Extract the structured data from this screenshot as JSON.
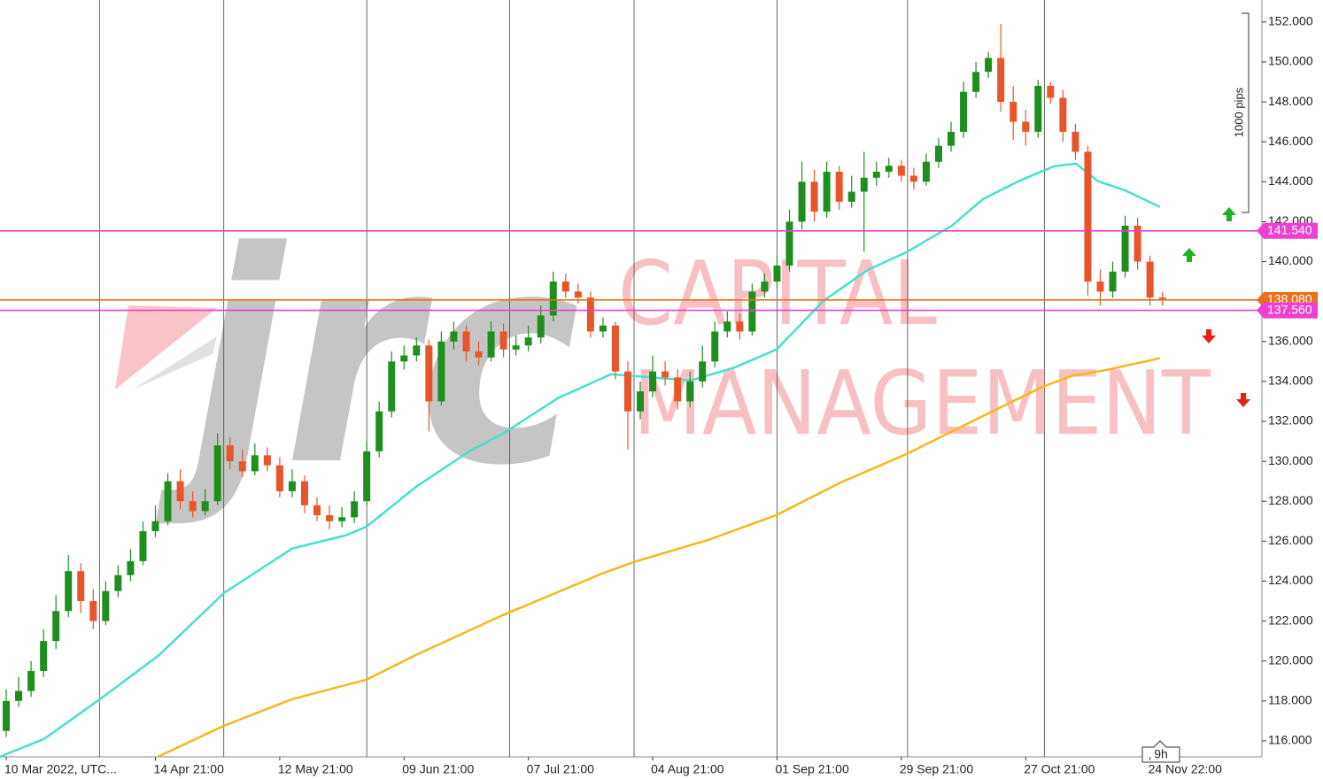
{
  "chart_data": {
    "type": "candlestick",
    "watermark": {
      "logo": "jrc",
      "line1": "CAPITAL",
      "line2": "MANAGEMENT"
    },
    "scale_label": "1000 pips",
    "timeframe_label": "9h",
    "up_color": "#1e8f1e",
    "down_color": "#e8552a",
    "xlim": [
      -0.5,
      101
    ],
    "ylim": [
      115.2,
      153.1
    ],
    "xgrid": [
      7.5,
      17.5,
      29,
      40.5,
      50.5,
      62,
      72.5,
      83.5
    ],
    "xticks": [
      {
        "value": 0,
        "label": "10 Mar 2022, UTC..."
      },
      {
        "value": 12,
        "label": "14 Apr 21:00"
      },
      {
        "value": 22,
        "label": "12 May 21:00"
      },
      {
        "value": 32,
        "label": "09 Jun 21:00"
      },
      {
        "value": 42,
        "label": "07 Jul 21:00"
      },
      {
        "value": 52,
        "label": "04 Aug 21:00"
      },
      {
        "value": 62,
        "label": "01 Sep 21:00"
      },
      {
        "value": 72,
        "label": "29 Sep 21:00"
      },
      {
        "value": 82,
        "label": "27 Oct 21:00"
      },
      {
        "value": 92,
        "label": "24 Nov 22:00"
      }
    ],
    "yticks": [
      {
        "value": 116,
        "label": "116.000"
      },
      {
        "value": 118,
        "label": "118.000"
      },
      {
        "value": 120,
        "label": "120.000"
      },
      {
        "value": 122,
        "label": "122.000"
      },
      {
        "value": 124,
        "label": "124.000"
      },
      {
        "value": 126,
        "label": "126.000"
      },
      {
        "value": 128,
        "label": "128.000"
      },
      {
        "value": 130,
        "label": "130.000"
      },
      {
        "value": 132,
        "label": "132.000"
      },
      {
        "value": 134,
        "label": "134.000"
      },
      {
        "value": 136,
        "label": "136.000"
      },
      {
        "value": 138,
        "label": "138.000"
      },
      {
        "value": 140,
        "label": "140.000"
      },
      {
        "value": 142,
        "label": "142.000"
      },
      {
        "value": 144,
        "label": "144.000"
      },
      {
        "value": 146,
        "label": "146.000"
      },
      {
        "value": 148,
        "label": "148.000"
      },
      {
        "value": 150,
        "label": "150.000"
      },
      {
        "value": 152,
        "label": "152.000"
      }
    ],
    "open": [
      116.5,
      118,
      118.5,
      119.5,
      121,
      122.5,
      124.5,
      123,
      122,
      123.5,
      124.3,
      125,
      126.5,
      127,
      129,
      128,
      127.5,
      128,
      130.8,
      130,
      129.5,
      130.3,
      129.8,
      128.5,
      129,
      127.8,
      127.3,
      127,
      127.2,
      128,
      130.5,
      132.5,
      135,
      135.3,
      135.8,
      133,
      136,
      136.5,
      135.5,
      135.2,
      136.5,
      135.6,
      135.8,
      136.2,
      137.3,
      139,
      138.5,
      138.2,
      136.5,
      136.8,
      134.5,
      132.5,
      133.5,
      134.5,
      134.2,
      133,
      134,
      135,
      136.5,
      137,
      136.5,
      138.5,
      139,
      139.8,
      142,
      144,
      142.5,
      144.5,
      143,
      143.5,
      144.2,
      144.5,
      144.8,
      144.3,
      144,
      145,
      145.8,
      146.5,
      148.5,
      149.5,
      150.2,
      148,
      147,
      146.5,
      148.8,
      148.2,
      146.5,
      145.5,
      139,
      138.5,
      139.5,
      141.8,
      140,
      138.2
    ],
    "high": [
      118.6,
      119.2,
      120,
      121.6,
      123.3,
      125.3,
      124.9,
      123.6,
      124,
      124.8,
      125.6,
      127,
      127.8,
      129.4,
      129.6,
      128.5,
      128.6,
      131.4,
      131.2,
      130.6,
      130.9,
      130.7,
      130.2,
      129.6,
      129.3,
      128.2,
      127.8,
      127.7,
      128.5,
      131,
      133,
      135.5,
      135.8,
      136.2,
      136.1,
      136.5,
      137,
      136.8,
      136,
      137,
      136.9,
      136.3,
      136.8,
      137.8,
      139.5,
      139.4,
      138.9,
      138.5,
      137.2,
      137,
      135,
      134,
      135.3,
      135,
      134.6,
      134.5,
      135.8,
      137,
      137.5,
      137.4,
      138.9,
      139.4,
      140.3,
      142.6,
      145,
      144.6,
      145,
      144.8,
      144.3,
      145.5,
      145,
      145.2,
      145.1,
      144.7,
      145.4,
      146.2,
      147,
      149,
      150,
      150.5,
      151.9,
      148.8,
      147.6,
      149.1,
      149,
      148.6,
      146.9,
      145.8,
      139.6,
      140,
      142.3,
      142.2,
      140.3,
      138.5
    ],
    "low": [
      116.2,
      117.7,
      118.2,
      119.2,
      120.6,
      122.2,
      122.4,
      121.6,
      121.8,
      123.2,
      124,
      124.8,
      126.2,
      126.8,
      127.6,
      127.2,
      127.3,
      127.8,
      129.6,
      129.2,
      129.3,
      129.5,
      128.2,
      128.2,
      127.4,
      127,
      126.6,
      126.7,
      126.9,
      127.8,
      130.2,
      132.2,
      134.6,
      135,
      131.5,
      132.8,
      135.6,
      135,
      134.8,
      135,
      135.2,
      135.3,
      135.5,
      135.9,
      137,
      138.2,
      137.9,
      136.2,
      136.2,
      134.1,
      130.6,
      132.1,
      133.2,
      133.8,
      132.6,
      132.7,
      133.7,
      134.7,
      136.2,
      136.1,
      136.3,
      138.2,
      138.7,
      139.5,
      141.6,
      142,
      142.2,
      142.6,
      142.7,
      140.5,
      143.8,
      144.2,
      144,
      143.6,
      143.8,
      144.7,
      145.5,
      146.2,
      148.2,
      149.2,
      147.5,
      146.1,
      145.8,
      146.2,
      147.9,
      146,
      145.1,
      138.3,
      137.8,
      138.2,
      139.2,
      139.6,
      137.8,
      137.8
    ],
    "close": [
      118,
      118.5,
      119.5,
      121,
      122.5,
      124.5,
      123,
      122,
      123.5,
      124.3,
      125,
      126.5,
      127,
      129,
      128,
      127.5,
      128,
      130.8,
      130,
      129.5,
      130.3,
      129.8,
      128.5,
      129,
      127.8,
      127.3,
      127,
      127.2,
      128,
      130.5,
      132.5,
      135,
      135.3,
      135.8,
      133,
      136,
      136.5,
      135.5,
      135.2,
      136.5,
      135.6,
      135.8,
      136.2,
      137.3,
      139,
      138.5,
      138.2,
      136.5,
      136.8,
      134.5,
      132.5,
      133.5,
      134.5,
      134.2,
      133,
      134,
      135,
      136.5,
      137,
      136.5,
      138.5,
      139,
      139.8,
      142,
      144,
      142.5,
      144.5,
      143,
      143.5,
      144.2,
      144.5,
      144.8,
      144.3,
      144,
      145,
      145.8,
      146.5,
      148.5,
      149.5,
      150.2,
      148,
      147,
      146.5,
      148.8,
      148.2,
      146.5,
      145.5,
      139,
      138.5,
      139.5,
      141.8,
      140,
      138.2,
      138.08
    ],
    "lines": [
      {
        "color": "#45e0cf",
        "x": [
          -0.5,
          3.06,
          7.55,
          12.32,
          17.52,
          23,
          27.28,
          28.99,
          32.98,
          37.25,
          39.96,
          44.37,
          48.64,
          50.5,
          55.06,
          58.62,
          61.96,
          65.74,
          69.3,
          72.43,
          76.07,
          78.56,
          81.41,
          84.26,
          86.04,
          87.82,
          89.95,
          92.8
        ],
        "values": [
          115.21,
          116.1,
          118.09,
          120.31,
          123.41,
          125.63,
          126.29,
          126.73,
          128.73,
          130.5,
          131.39,
          133.16,
          134.36,
          134.27,
          134.05,
          134.71,
          135.6,
          138.04,
          139.59,
          140.48,
          141.8,
          143.13,
          144.02,
          144.77,
          144.91,
          144.02,
          143.58,
          142.74
        ]
      },
      {
        "color": "#f5b81c",
        "x": [
          12.18,
          17.52,
          23,
          28.99,
          32.98,
          39.96,
          47.93,
          50.5,
          56.48,
          61.96,
          67.16,
          72.43,
          77.85,
          83.4,
          85.68,
          88.53,
          92.8
        ],
        "values": [
          115.2,
          116.76,
          118.09,
          119.07,
          120.31,
          122.3,
          124.38,
          124.96,
          126.07,
          127.31,
          128.95,
          130.37,
          132.05,
          133.74,
          134.27,
          134.58,
          135.16
        ]
      }
    ],
    "hlines": [
      {
        "value": 138.08,
        "label": "138.080",
        "color": "#e8711a"
      },
      {
        "value": 141.54,
        "label": "141.540",
        "color": "#ee3fd0"
      },
      {
        "value": 137.56,
        "label": "137.560",
        "color": "#ee3fd0"
      }
    ]
  }
}
